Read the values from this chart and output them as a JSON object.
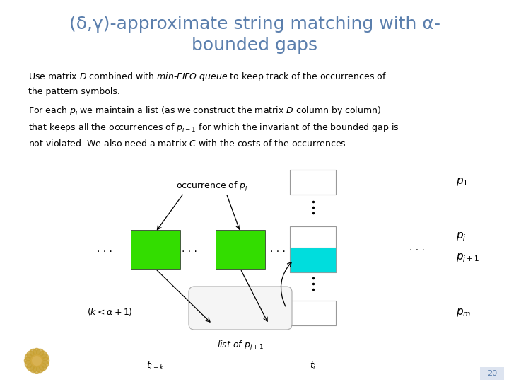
{
  "title_line1": "(δ,γ)-approximate string matching with α-",
  "title_line2": "bounded gaps",
  "title_color": "#5b7fad",
  "title_fontsize": 18,
  "bg_color": "#ffffff",
  "page_number": "20",
  "diagram": {
    "label_occurrence": "occurrence of $p_j$",
    "label_k": "$(k<\\alpha+1)$",
    "label_list": "list of $p_{j+1}$",
    "label_t_ik": "$t_{i-k}$",
    "label_ti": "$t_i$",
    "label_p1": "$p_1$",
    "label_pj": "$p_j$",
    "label_pj1": "$p_{j+1}$",
    "label_pm": "$p_m$"
  }
}
